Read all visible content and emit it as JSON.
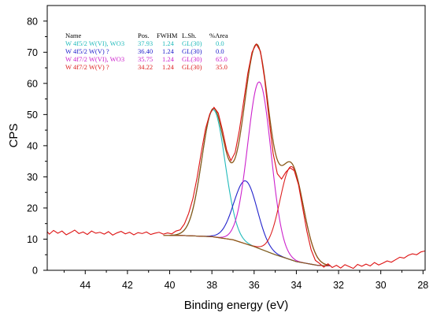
{
  "chart_data": {
    "type": "line",
    "xlabel": "Binding energy (eV)",
    "ylabel": "CPS",
    "xlim": [
      45.8,
      27.9
    ],
    "ylim": [
      0,
      85
    ],
    "x_axis_reversed": true,
    "x_ticks": [
      "44",
      "42",
      "40",
      "38",
      "36",
      "34",
      "32",
      "30",
      "28"
    ],
    "y_ticks": [
      "0",
      "10",
      "20",
      "30",
      "40",
      "50",
      "60",
      "70",
      "80"
    ],
    "grid": false,
    "legend_table": {
      "headers": [
        "Name",
        "Pos.",
        "FWHM",
        "L.Sh.",
        "%Area"
      ],
      "rows": [
        {
          "name": "W 4f5/2 W(VI), WO3",
          "pos": "37.93",
          "fwhm": "1.24",
          "lsh": "GL(30)",
          "area": "0.0",
          "color": "#22bbbb"
        },
        {
          "name": "W 4f5/2 W(V) ?",
          "pos": "36.40",
          "fwhm": "1.24",
          "lsh": "GL(30)",
          "area": "0.0",
          "color": "#2222cc"
        },
        {
          "name": "W 4f7/2 W(VI), WO3",
          "pos": "35.75",
          "fwhm": "1.24",
          "lsh": "GL(30)",
          "area": "65.0",
          "color": "#cc22cc"
        },
        {
          "name": "W 4f7/2 W(V) ?",
          "pos": "34.22",
          "fwhm": "1.24",
          "lsh": "GL(30)",
          "area": "35.0",
          "color": "#dd2222"
        }
      ]
    },
    "background_points": [
      [
        39.5,
        11.2
      ],
      [
        38.0,
        10.8
      ],
      [
        37.0,
        9.8
      ],
      [
        36.0,
        7.6
      ],
      [
        35.0,
        5.0
      ],
      [
        34.0,
        2.8
      ],
      [
        33.0,
        1.6
      ],
      [
        32.4,
        1.4
      ]
    ],
    "components": [
      {
        "color": "#22bbbb",
        "center": 37.93,
        "height": 40.8,
        "sigma": 0.55
      },
      {
        "color": "#2222cc",
        "center": 36.4,
        "height": 20.2,
        "sigma": 0.55
      },
      {
        "color": "#cc22cc",
        "center": 35.75,
        "height": 53.5,
        "sigma": 0.55
      },
      {
        "color": "#dd2222",
        "center": 34.22,
        "height": 30.0,
        "sigma": 0.55
      }
    ],
    "series": [
      {
        "style": "raw",
        "color": "#dd1111",
        "points": [
          [
            45.8,
            12.4
          ],
          [
            45.7,
            11.6
          ],
          [
            45.5,
            12.8
          ],
          [
            45.3,
            11.9
          ],
          [
            45.1,
            12.6
          ],
          [
            44.9,
            11.4
          ],
          [
            44.7,
            12.1
          ],
          [
            44.5,
            12.9
          ],
          [
            44.3,
            11.8
          ],
          [
            44.1,
            12.3
          ],
          [
            43.9,
            11.5
          ],
          [
            43.7,
            12.6
          ],
          [
            43.5,
            11.9
          ],
          [
            43.3,
            12.2
          ],
          [
            43.1,
            11.6
          ],
          [
            42.9,
            12.4
          ],
          [
            42.7,
            11.3
          ],
          [
            42.5,
            12.0
          ],
          [
            42.3,
            12.5
          ],
          [
            42.1,
            11.7
          ],
          [
            41.9,
            12.2
          ],
          [
            41.7,
            11.4
          ],
          [
            41.5,
            12.1
          ],
          [
            41.3,
            11.8
          ],
          [
            41.1,
            12.3
          ],
          [
            40.9,
            11.5
          ],
          [
            40.7,
            11.9
          ],
          [
            40.5,
            12.2
          ],
          [
            40.3,
            11.6
          ],
          [
            40.1,
            12.0
          ],
          [
            39.9,
            11.7
          ],
          [
            39.7,
            12.6
          ],
          [
            39.5,
            13.0
          ],
          [
            39.3,
            14.9
          ],
          [
            39.1,
            18.3
          ],
          [
            38.9,
            23.0
          ],
          [
            38.7,
            29.8
          ],
          [
            38.5,
            38.0
          ],
          [
            38.3,
            45.5
          ],
          [
            38.1,
            50.2
          ],
          [
            37.9,
            52.3
          ],
          [
            37.7,
            50.5
          ],
          [
            37.5,
            45.0
          ],
          [
            37.3,
            38.6
          ],
          [
            37.1,
            35.2
          ],
          [
            36.9,
            37.8
          ],
          [
            36.7,
            44.9
          ],
          [
            36.5,
            54.0
          ],
          [
            36.3,
            63.2
          ],
          [
            36.1,
            70.0
          ],
          [
            35.9,
            72.6
          ],
          [
            35.7,
            70.3
          ],
          [
            35.5,
            61.2
          ],
          [
            35.3,
            49.0
          ],
          [
            35.1,
            37.5
          ],
          [
            34.9,
            31.0
          ],
          [
            34.7,
            29.3
          ],
          [
            34.5,
            31.5
          ],
          [
            34.3,
            32.9
          ],
          [
            34.1,
            32.0
          ],
          [
            33.9,
            27.5
          ],
          [
            33.7,
            20.0
          ],
          [
            33.5,
            12.5
          ],
          [
            33.3,
            6.6
          ],
          [
            33.1,
            3.2
          ],
          [
            32.9,
            2.2
          ],
          [
            32.7,
            1.0
          ],
          [
            32.5,
            2.1
          ],
          [
            32.3,
            0.9
          ],
          [
            32.1,
            1.6
          ],
          [
            31.9,
            0.7
          ],
          [
            31.7,
            1.8
          ],
          [
            31.5,
            1.2
          ],
          [
            31.3,
            0.6
          ],
          [
            31.1,
            1.9
          ],
          [
            30.9,
            1.3
          ],
          [
            30.7,
            2.0
          ],
          [
            30.5,
            1.4
          ],
          [
            30.3,
            2.5
          ],
          [
            30.1,
            1.7
          ],
          [
            29.9,
            2.3
          ],
          [
            29.7,
            3.0
          ],
          [
            29.5,
            2.6
          ],
          [
            29.3,
            3.4
          ],
          [
            29.1,
            4.2
          ],
          [
            28.9,
            3.9
          ],
          [
            28.7,
            4.8
          ],
          [
            28.5,
            5.3
          ],
          [
            28.3,
            5.0
          ],
          [
            28.1,
            5.9
          ],
          [
            27.9,
            6.2
          ]
        ]
      }
    ]
  }
}
